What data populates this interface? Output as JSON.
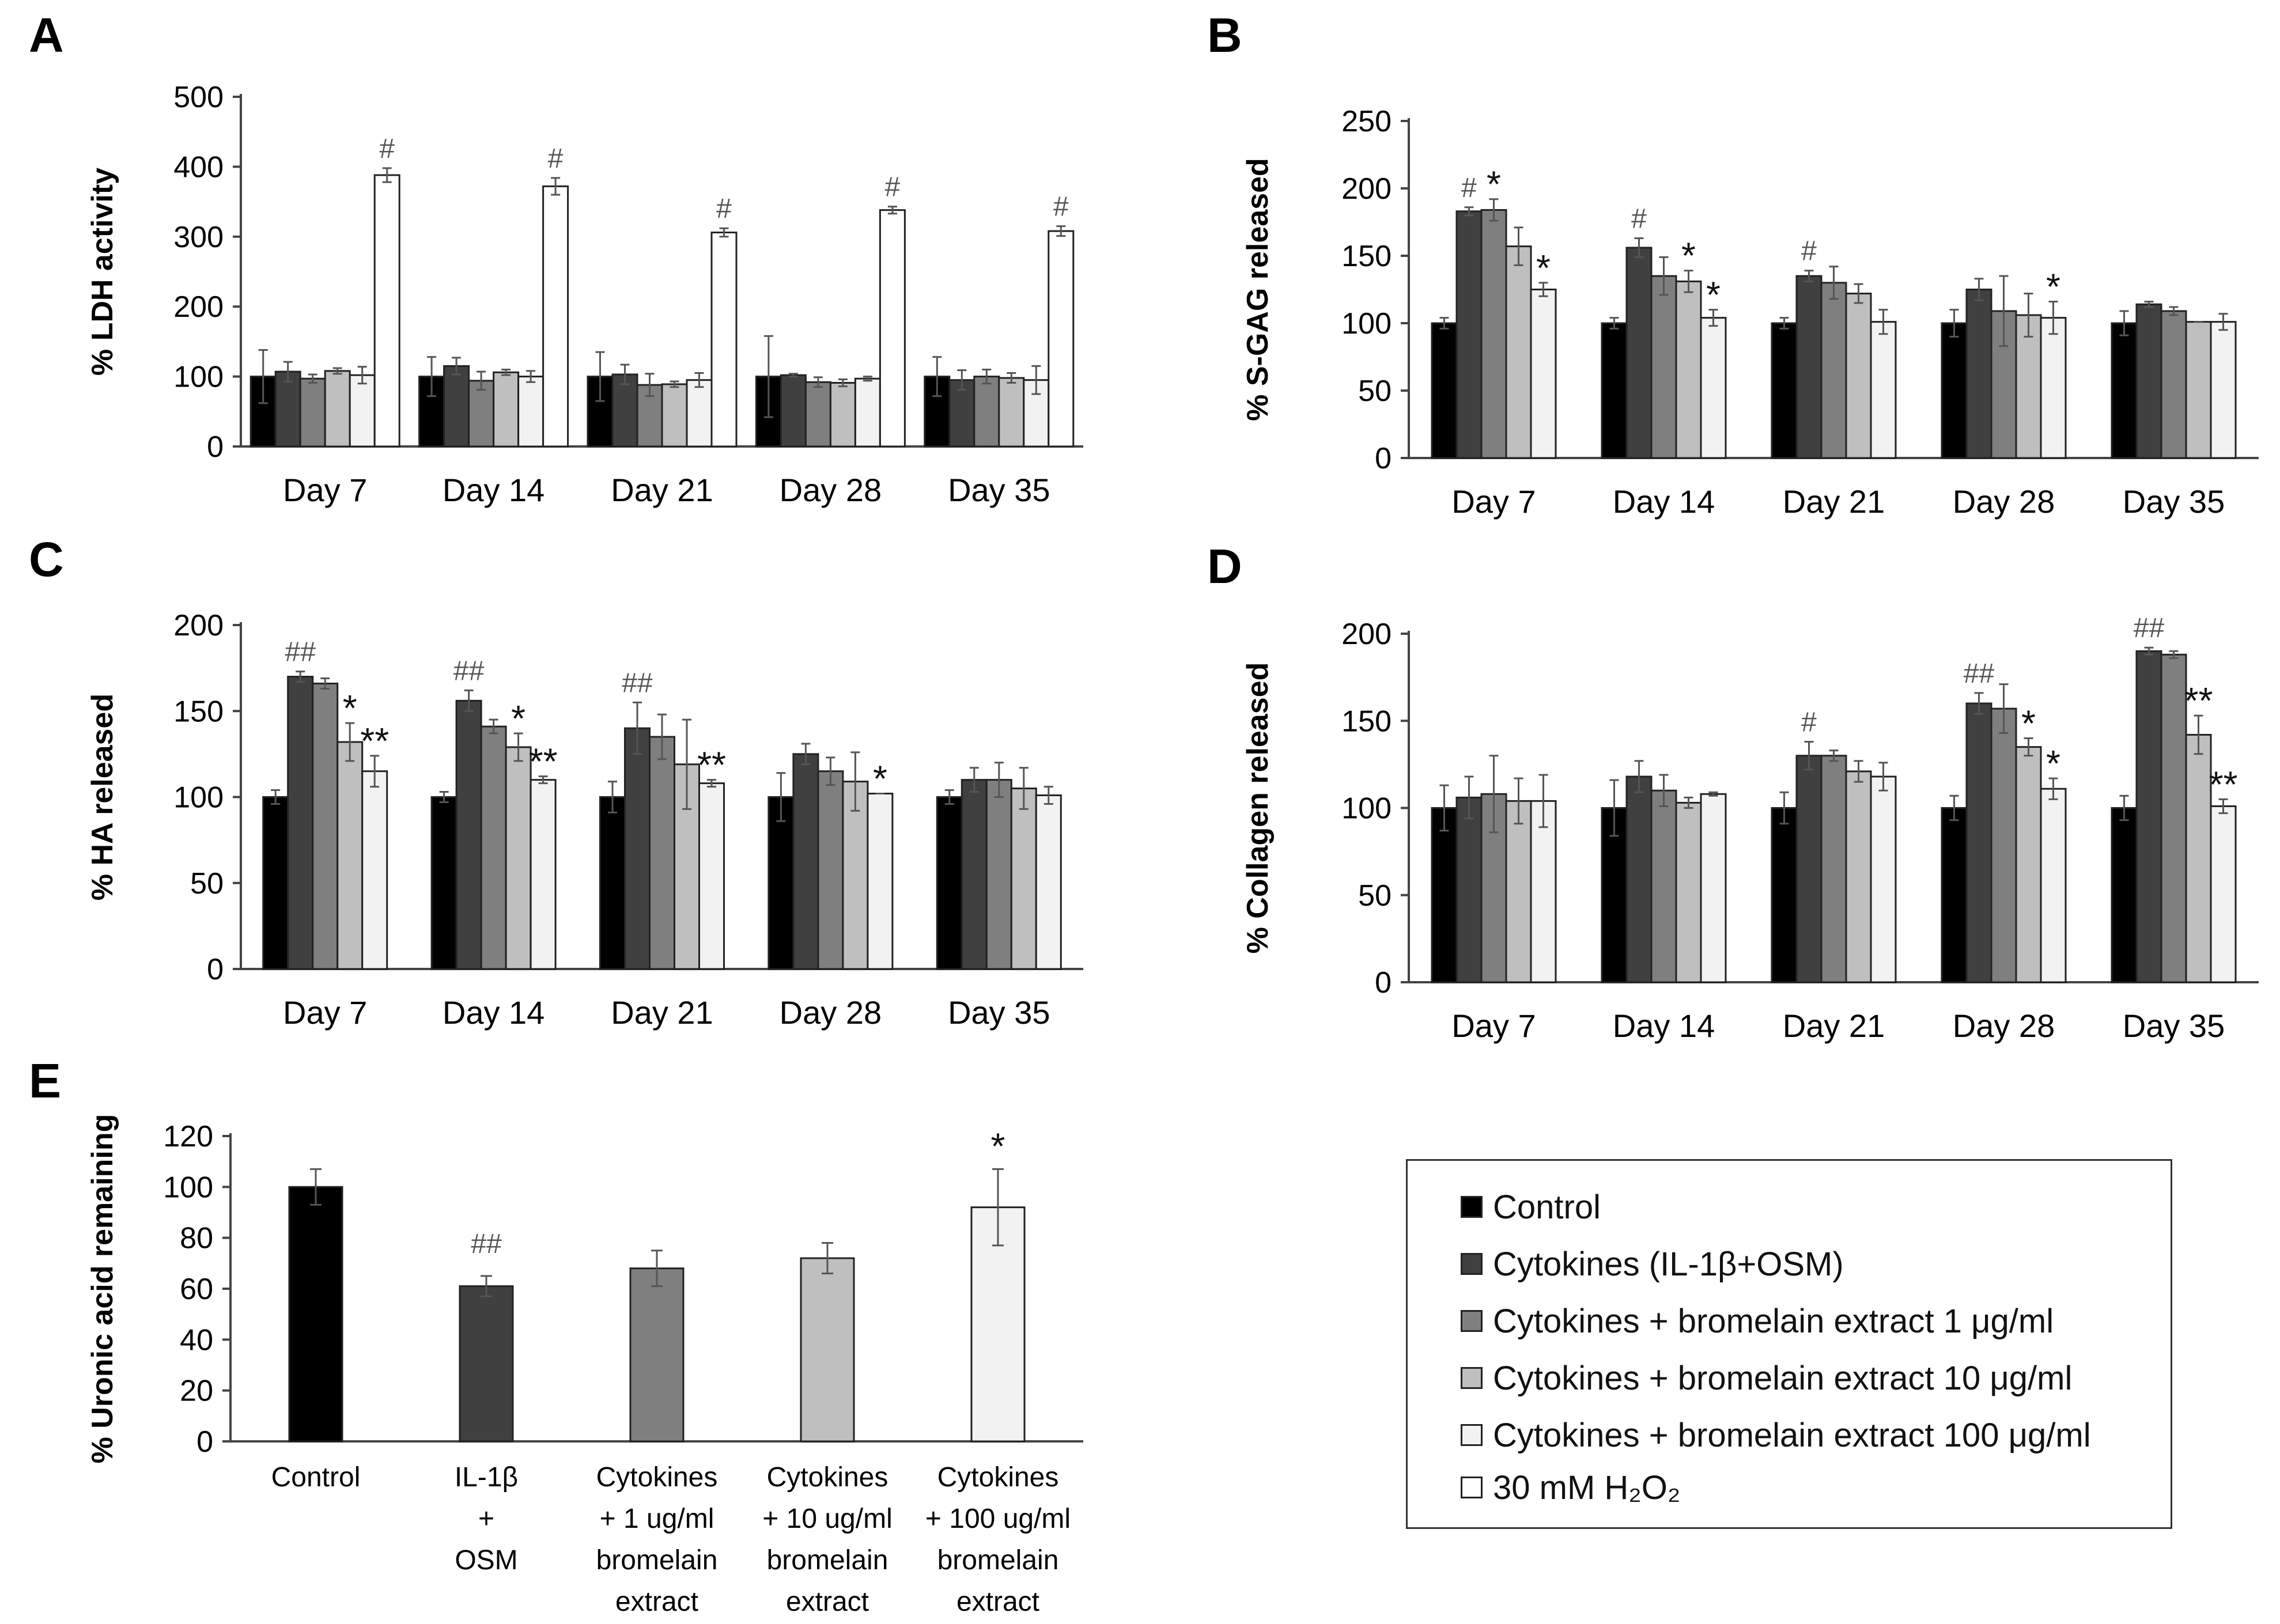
{
  "chart_data": [
    {
      "panel": "A",
      "type": "bar",
      "ylabel": "% LDH activity",
      "ylim": [
        0,
        500
      ],
      "yticks": [
        0,
        100,
        200,
        300,
        400,
        500
      ],
      "categories": [
        "Day 7",
        "Day 14",
        "Day 21",
        "Day 28",
        "Day 35"
      ],
      "series": [
        {
          "name": "Control",
          "values": [
            100,
            100,
            100,
            100,
            100
          ],
          "errors": [
            38,
            28,
            35,
            58,
            28
          ]
        },
        {
          "name": "Cytokines (IL-1β+OSM)",
          "values": [
            107,
            115,
            103,
            102,
            95
          ],
          "errors": [
            14,
            12,
            14,
            2,
            14
          ]
        },
        {
          "name": "Cytokines + bromelain extract 1 μg/ml",
          "values": [
            97,
            94,
            88,
            92,
            100
          ],
          "errors": [
            6,
            13,
            16,
            7,
            10
          ]
        },
        {
          "name": "Cytokines + bromelain extract 10 μg/ml",
          "values": [
            108,
            106,
            89,
            91,
            98
          ],
          "errors": [
            4,
            4,
            4,
            5,
            7
          ]
        },
        {
          "name": "Cytokines + bromelain extract 100 μg/ml",
          "values": [
            102,
            100,
            95,
            97,
            95
          ],
          "errors": [
            12,
            8,
            10,
            3,
            20
          ]
        },
        {
          "name": "30 mM H₂O₂",
          "values": [
            388,
            372,
            306,
            338,
            308
          ],
          "errors": [
            10,
            12,
            6,
            5,
            7
          ]
        }
      ],
      "annotations": [
        {
          "category": 0,
          "series": 5,
          "text": "#"
        },
        {
          "category": 1,
          "series": 5,
          "text": "#"
        },
        {
          "category": 2,
          "series": 5,
          "text": "#"
        },
        {
          "category": 3,
          "series": 5,
          "text": "#"
        },
        {
          "category": 4,
          "series": 5,
          "text": "#"
        }
      ]
    },
    {
      "panel": "B",
      "type": "bar",
      "ylabel": "% S-GAG released",
      "ylim": [
        0,
        250
      ],
      "yticks": [
        0,
        50,
        100,
        150,
        200,
        250
      ],
      "categories": [
        "Day 7",
        "Day 14",
        "Day 21",
        "Day 28",
        "Day 35"
      ],
      "series": [
        {
          "name": "Control",
          "values": [
            100,
            100,
            100,
            100,
            100
          ],
          "errors": [
            4,
            4,
            4,
            10,
            9
          ]
        },
        {
          "name": "Cytokines (IL-1β+OSM)",
          "values": [
            183,
            156,
            135,
            125,
            114
          ],
          "errors": [
            3,
            7,
            4,
            8,
            2
          ]
        },
        {
          "name": "Cytokines + bromelain extract 1 μg/ml",
          "values": [
            184,
            135,
            130,
            109,
            109
          ],
          "errors": [
            8,
            14,
            12,
            26,
            3
          ]
        },
        {
          "name": "Cytokines + bromelain extract 10 μg/ml",
          "values": [
            157,
            131,
            122,
            106,
            101
          ],
          "errors": [
            14,
            8,
            7,
            16,
            0
          ]
        },
        {
          "name": "Cytokines + bromelain extract 100 μg/ml",
          "values": [
            125,
            104,
            101,
            104,
            101
          ],
          "errors": [
            5,
            6,
            9,
            12,
            6
          ]
        }
      ],
      "annotations": [
        {
          "category": 0,
          "series": 1,
          "text": "#"
        },
        {
          "category": 0,
          "series": 2,
          "text": "*"
        },
        {
          "category": 0,
          "series": 4,
          "text": "*"
        },
        {
          "category": 1,
          "series": 1,
          "text": "#"
        },
        {
          "category": 1,
          "series": 3,
          "text": "*"
        },
        {
          "category": 1,
          "series": 4,
          "text": "*"
        },
        {
          "category": 2,
          "series": 1,
          "text": "#"
        },
        {
          "category": 3,
          "series": 4,
          "text": "*"
        }
      ]
    },
    {
      "panel": "C",
      "type": "bar",
      "ylabel": "% HA released",
      "ylim": [
        0,
        200
      ],
      "yticks": [
        0,
        50,
        100,
        150,
        200
      ],
      "categories": [
        "Day 7",
        "Day 14",
        "Day 21",
        "Day 28",
        "Day 35"
      ],
      "series": [
        {
          "name": "Control",
          "values": [
            100,
            100,
            100,
            100,
            100
          ],
          "errors": [
            4,
            3,
            9,
            14,
            4
          ]
        },
        {
          "name": "Cytokines (IL-1β+OSM)",
          "values": [
            170,
            156,
            140,
            125,
            110
          ],
          "errors": [
            3,
            6,
            15,
            6,
            7
          ]
        },
        {
          "name": "Cytokines + bromelain extract 1 μg/ml",
          "values": [
            166,
            141,
            135,
            115,
            110
          ],
          "errors": [
            3,
            4,
            13,
            8,
            10
          ]
        },
        {
          "name": "Cytokines + bromelain extract 10 μg/ml",
          "values": [
            132,
            129,
            119,
            109,
            105
          ],
          "errors": [
            11,
            8,
            26,
            17,
            12
          ]
        },
        {
          "name": "Cytokines + bromelain extract 100 μg/ml",
          "values": [
            115,
            110,
            108,
            102,
            101
          ],
          "errors": [
            9,
            2,
            2,
            0,
            5
          ]
        }
      ],
      "annotations": [
        {
          "category": 0,
          "series": 1,
          "text": "##"
        },
        {
          "category": 0,
          "series": 3,
          "text": "*"
        },
        {
          "category": 0,
          "series": 4,
          "text": "**"
        },
        {
          "category": 1,
          "series": 1,
          "text": "##"
        },
        {
          "category": 1,
          "series": 3,
          "text": "*"
        },
        {
          "category": 1,
          "series": 4,
          "text": "**"
        },
        {
          "category": 2,
          "series": 1,
          "text": "##"
        },
        {
          "category": 2,
          "series": 4,
          "text": "**"
        },
        {
          "category": 3,
          "series": 4,
          "text": "*"
        }
      ]
    },
    {
      "panel": "D",
      "type": "bar",
      "ylabel": "% Collagen  released",
      "ylim": [
        0,
        200
      ],
      "yticks": [
        0,
        50,
        100,
        150,
        200
      ],
      "categories": [
        "Day 7",
        "Day 14",
        "Day 21",
        "Day 28",
        "Day 35"
      ],
      "series": [
        {
          "name": "Control",
          "values": [
            100,
            100,
            100,
            100,
            100
          ],
          "errors": [
            13,
            16,
            9,
            7,
            7
          ]
        },
        {
          "name": "Cytokines (IL-1β+OSM)",
          "values": [
            106,
            118,
            130,
            160,
            190
          ],
          "errors": [
            12,
            9,
            8,
            6,
            2
          ]
        },
        {
          "name": "Cytokines + bromelain extract 1 μg/ml",
          "values": [
            108,
            110,
            130,
            157,
            188
          ],
          "errors": [
            22,
            9,
            3,
            14,
            2
          ]
        },
        {
          "name": "Cytokines + bromelain extract 10 μg/ml",
          "values": [
            104,
            103,
            121,
            135,
            142
          ],
          "errors": [
            13,
            3,
            6,
            5,
            11
          ]
        },
        {
          "name": "Cytokines + bromelain extract 100 μg/ml",
          "values": [
            104,
            108,
            118,
            111,
            101
          ],
          "errors": [
            15,
            1,
            8,
            6,
            4
          ]
        }
      ],
      "annotations": [
        {
          "category": 2,
          "series": 1,
          "text": "#"
        },
        {
          "category": 3,
          "series": 1,
          "text": "##"
        },
        {
          "category": 3,
          "series": 3,
          "text": "*"
        },
        {
          "category": 3,
          "series": 4,
          "text": "*"
        },
        {
          "category": 4,
          "series": 1,
          "text": "##"
        },
        {
          "category": 4,
          "series": 3,
          "text": "**"
        },
        {
          "category": 4,
          "series": 4,
          "text": "**"
        }
      ]
    },
    {
      "panel": "E",
      "type": "bar",
      "ylabel": "% Uronic acid remaining",
      "ylim": [
        0,
        120
      ],
      "yticks": [
        0,
        20,
        40,
        60,
        80,
        100,
        120
      ],
      "categories": [
        [
          "Control"
        ],
        [
          "IL-1β",
          "+",
          "OSM"
        ],
        [
          "Cytokines",
          "+ 1 ug/ml",
          "bromelain",
          "extract"
        ],
        [
          "Cytokines",
          "+ 10 ug/ml",
          "bromelain",
          "extract"
        ],
        [
          "Cytokines",
          "+ 100 ug/ml",
          "bromelain",
          "extract"
        ]
      ],
      "values": [
        100,
        61,
        68,
        72,
        92
      ],
      "errors": [
        7,
        4,
        7,
        6,
        15
      ],
      "annotations": [
        {
          "category": 1,
          "text": "##"
        },
        {
          "category": 4,
          "text": "*"
        }
      ]
    }
  ],
  "legend": {
    "items": [
      {
        "label": "Control",
        "color": "#000000"
      },
      {
        "label": "Cytokines (IL-1β+OSM)",
        "color": "#404040"
      },
      {
        "label": "Cytokines + bromelain extract 1 μg/ml",
        "color": "#7f7f7f"
      },
      {
        "label": "Cytokines + bromelain extract 10 μg/ml",
        "color": "#bfbfbf"
      },
      {
        "label": "Cytokines + bromelain extract 100 μg/ml",
        "color": "#f2f2f2"
      },
      {
        "label": "30 mM H₂O₂",
        "color": "#ffffff"
      }
    ]
  }
}
